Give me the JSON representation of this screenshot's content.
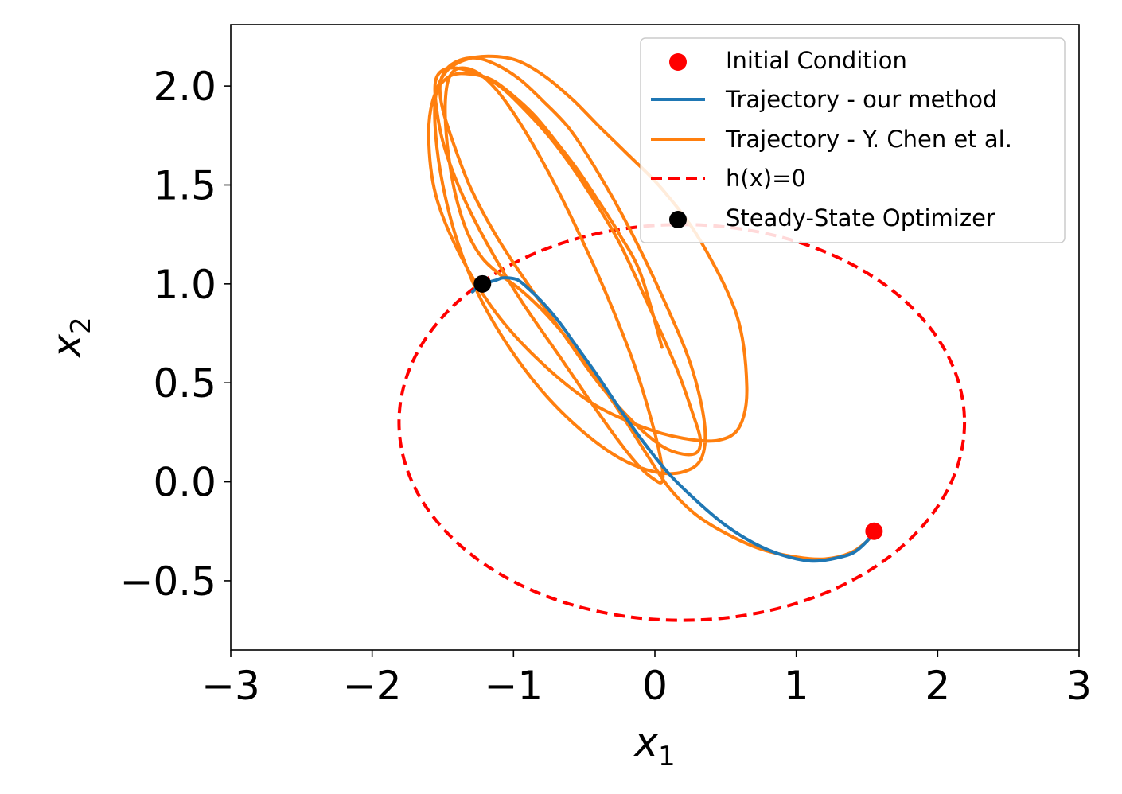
{
  "chart_data": {
    "type": "line",
    "xlabel": "x",
    "xlabel_sub": "1",
    "ylabel": "x",
    "ylabel_sub": "2",
    "xlim": [
      -3,
      3
    ],
    "ylim": [
      -0.85,
      2.31
    ],
    "xticks": [
      -3,
      -2,
      -1,
      0,
      1,
      2,
      3
    ],
    "xtick_labels": [
      "−3",
      "−2",
      "−1",
      "0",
      "1",
      "2",
      "3"
    ],
    "yticks": [
      -0.5,
      0.0,
      0.5,
      1.0,
      1.5,
      2.0
    ],
    "ytick_labels": [
      "−0.5",
      "0.0",
      "0.5",
      "1.0",
      "1.5",
      "2.0"
    ],
    "grid": false,
    "legend_position": "top-right",
    "legend": [
      {
        "label": "Initial Condition",
        "kind": "marker",
        "color": "#ff0000"
      },
      {
        "label": "Trajectory - our method",
        "kind": "line",
        "color": "#1f77b4"
      },
      {
        "label": "Trajectory - Y. Chen et al.",
        "kind": "line",
        "color": "#ff7f0e"
      },
      {
        "label": "h(x)=0",
        "kind": "dashed",
        "color": "#ff0000"
      },
      {
        "label": "Steady-State Optimizer",
        "kind": "marker",
        "color": "#000000"
      }
    ],
    "constraint_ellipse": {
      "name": "h(x)=0",
      "center": [
        0.19,
        0.3
      ],
      "radii": [
        2.0,
        1.0
      ],
      "color": "#ff0000"
    },
    "initial_condition": {
      "x": 1.55,
      "y": -0.25,
      "color": "#ff0000"
    },
    "steady_state_optimizer": {
      "x": -1.22,
      "y": 1.0,
      "color": "#000000"
    },
    "series": [
      {
        "name": "Trajectory - our method",
        "color": "#1f77b4",
        "x": [
          1.55,
          1.5,
          1.4,
          1.25,
          1.1,
          0.9,
          0.7,
          0.5,
          0.3,
          0.1,
          -0.08,
          -0.25,
          -0.4,
          -0.55,
          -0.68,
          -0.8,
          -0.9,
          -0.97,
          -1.03,
          -1.08,
          -1.12,
          -1.17,
          -1.22,
          -1.26,
          -1.29
        ],
        "y": [
          -0.25,
          -0.3,
          -0.36,
          -0.39,
          -0.4,
          -0.37,
          -0.31,
          -0.22,
          -0.1,
          0.04,
          0.2,
          0.37,
          0.53,
          0.68,
          0.81,
          0.91,
          0.98,
          1.02,
          1.03,
          1.03,
          1.02,
          1.01,
          1.0,
          0.98,
          0.96
        ]
      },
      {
        "name": "Trajectory - Y. Chen et al.",
        "color": "#ff7f0e",
        "x": [
          1.55,
          1.5,
          1.38,
          1.2,
          1.0,
          0.75,
          0.5,
          0.28,
          0.1,
          -0.05,
          -0.2,
          -0.35,
          -0.5,
          -0.65,
          -0.8,
          -0.95,
          -1.1,
          -1.22,
          -1.32,
          -1.4,
          -1.45,
          -1.48,
          -1.48,
          -1.45,
          -1.38,
          -1.26,
          -1.12,
          -0.96,
          -0.78,
          -0.58,
          -0.35,
          -0.15,
          -0.02,
          0.05,
          0.05,
          0.0,
          -0.1,
          -0.25,
          -0.45,
          -0.68,
          -0.95,
          -1.2,
          -1.38,
          -1.5,
          -1.55,
          -1.55,
          -1.5,
          -1.4,
          -1.26,
          -1.1,
          -0.92,
          -0.72,
          -0.5,
          -0.26,
          -0.05,
          0.15,
          0.27,
          0.32,
          0.3,
          0.2,
          0.05,
          -0.15,
          -0.4,
          -0.65,
          -0.9,
          -1.12,
          -1.3,
          -1.42,
          -1.5,
          -1.52,
          -1.48,
          -1.38,
          -1.25,
          -1.1,
          -0.95,
          -0.8,
          -0.6,
          -0.4,
          -0.18,
          0.05,
          0.25,
          0.35,
          0.33,
          0.2,
          0.0,
          -0.25,
          -0.52,
          -0.8,
          -1.05,
          -1.25,
          -1.4,
          -1.5,
          -1.55,
          -1.55,
          -1.48,
          -1.35,
          -1.18,
          -0.98,
          -0.78,
          -0.58,
          -0.4,
          -0.2,
          0.05,
          0.32,
          0.58,
          0.65,
          0.6,
          0.45,
          0.2,
          -0.1,
          -0.45,
          -0.8,
          -1.12,
          -1.38,
          -1.55,
          -1.6,
          -1.56,
          -1.45,
          -1.3,
          -1.15,
          -1.0,
          -0.85,
          -0.7,
          -0.55,
          -0.4,
          -0.25,
          -0.1,
          0.05
        ],
        "y": [
          -0.25,
          -0.3,
          -0.36,
          -0.39,
          -0.38,
          -0.34,
          -0.26,
          -0.16,
          -0.03,
          0.13,
          0.3,
          0.46,
          0.61,
          0.75,
          0.87,
          0.97,
          1.05,
          1.13,
          1.25,
          1.42,
          1.6,
          1.8,
          1.95,
          2.05,
          2.09,
          2.07,
          1.98,
          1.82,
          1.6,
          1.32,
          0.96,
          0.6,
          0.3,
          0.08,
          0.0,
          0.01,
          0.07,
          0.2,
          0.4,
          0.64,
          0.92,
          1.22,
          1.48,
          1.72,
          1.92,
          2.03,
          2.08,
          2.09,
          2.06,
          2.0,
          1.88,
          1.72,
          1.5,
          1.22,
          0.9,
          0.58,
          0.34,
          0.22,
          0.15,
          0.14,
          0.18,
          0.3,
          0.5,
          0.75,
          1.0,
          1.24,
          1.48,
          1.7,
          1.88,
          2.0,
          2.08,
          2.13,
          2.14,
          2.1,
          2.03,
          1.93,
          1.78,
          1.56,
          1.28,
          0.94,
          0.6,
          0.3,
          0.12,
          0.05,
          0.05,
          0.12,
          0.26,
          0.46,
          0.7,
          0.95,
          1.22,
          1.5,
          1.75,
          1.95,
          2.07,
          2.13,
          2.15,
          2.13,
          2.05,
          1.93,
          1.8,
          1.66,
          1.48,
          1.22,
          0.84,
          0.48,
          0.28,
          0.21,
          0.22,
          0.28,
          0.4,
          0.6,
          0.85,
          1.15,
          1.45,
          1.75,
          1.95,
          2.05,
          2.06,
          2.03,
          1.95,
          1.85,
          1.72,
          1.58,
          1.42,
          1.25,
          1.05,
          0.68
        ]
      }
    ]
  }
}
